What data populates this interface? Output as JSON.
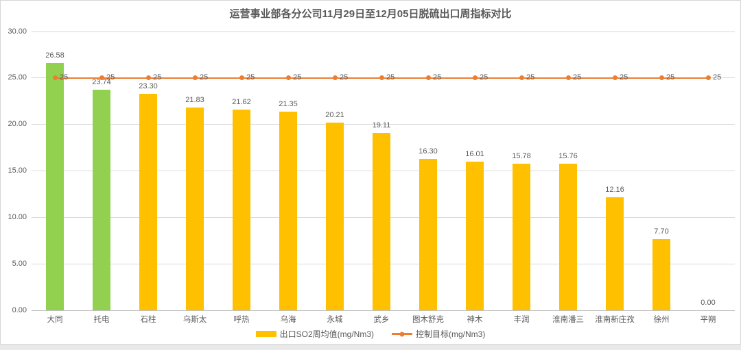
{
  "chart_data": {
    "type": "bar",
    "title": "运营事业部各分公司11月29日至12月05日脱硫出口周指标对比",
    "categories": [
      "大同",
      "托电",
      "石柱",
      "乌斯太",
      "呼热",
      "乌海",
      "永城",
      "武乡",
      "图木舒克",
      "神木",
      "丰润",
      "淮南潘三",
      "淮南新庄孜",
      "徐州",
      "平朔"
    ],
    "series": [
      {
        "name": "出口SO2周均值(mg/Nm3)",
        "type": "bar",
        "values": [
          26.58,
          23.74,
          23.3,
          21.83,
          21.62,
          21.35,
          20.21,
          19.11,
          16.3,
          16.01,
          15.78,
          15.76,
          12.16,
          7.7,
          0.0
        ],
        "value_labels": [
          "26.58",
          "23.74",
          "23.30",
          "21.83",
          "21.62",
          "21.35",
          "20.21",
          "19.11",
          "16.30",
          "16.01",
          "15.78",
          "15.76",
          "12.16",
          "7.70",
          "0.00"
        ],
        "bar_colors": [
          "#92D050",
          "#92D050",
          "#FFC000",
          "#FFC000",
          "#FFC000",
          "#FFC000",
          "#FFC000",
          "#FFC000",
          "#FFC000",
          "#FFC000",
          "#FFC000",
          "#FFC000",
          "#FFC000",
          "#FFC000",
          "#FFC000"
        ]
      },
      {
        "name": "控制目标(mg/Nm3)",
        "type": "line",
        "value": 25,
        "value_label": "25",
        "color": "#ED7D31"
      }
    ],
    "legend": [
      "出口SO2周均值(mg/Nm3)",
      "控制目标(mg/Nm3)"
    ],
    "legend_position": "bottom",
    "xlabel": "",
    "ylabel": "",
    "ylim": [
      0,
      30
    ],
    "y_ticks": [
      {
        "value": 30,
        "label": "30.00"
      },
      {
        "value": 25,
        "label": "25.00"
      },
      {
        "value": 20,
        "label": "20.00"
      },
      {
        "value": 15,
        "label": "15.00"
      },
      {
        "value": 10,
        "label": "10.00"
      },
      {
        "value": 5,
        "label": "5.00"
      },
      {
        "value": 0,
        "label": "0.00"
      }
    ],
    "grid": "horizontal",
    "colors": {
      "bar_default": "#FFC000",
      "bar_highlight": "#92D050",
      "target_line": "#ED7D31",
      "text": "#595959",
      "gridline": "#D9D9D9",
      "axis_line": "#BFBFBF",
      "chart_background": "#FFFFFF",
      "frame_border": "#D6D6D6"
    }
  }
}
